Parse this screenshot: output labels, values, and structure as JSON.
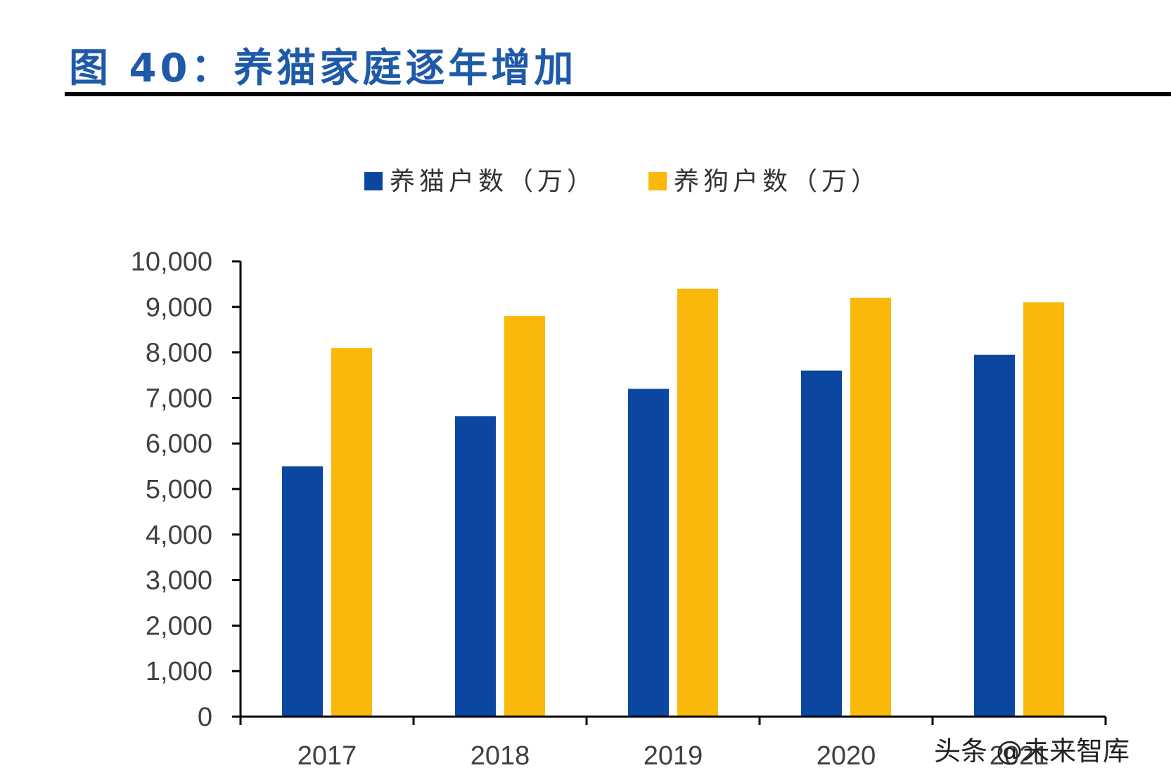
{
  "figure": {
    "title": "图 40：养猫家庭逐年增加"
  },
  "watermark": "头条 @未来智库",
  "chart_data": {
    "type": "bar",
    "categories": [
      "2017",
      "2018",
      "2019",
      "2020",
      "2021"
    ],
    "series": [
      {
        "name": "养猫户数（万）",
        "color": "#0b47a1",
        "values": [
          5500,
          6600,
          7200,
          7600,
          7950
        ]
      },
      {
        "name": "养狗户数（万）",
        "color": "#fab80a",
        "values": [
          8100,
          8800,
          9400,
          9200,
          9100
        ]
      }
    ],
    "ylim": [
      0,
      10000
    ],
    "yticks": [
      "0",
      "1,000",
      "2,000",
      "3,000",
      "4,000",
      "5,000",
      "6,000",
      "7,000",
      "8,000",
      "9,000",
      "10,000"
    ],
    "ytick_values": [
      0,
      1000,
      2000,
      3000,
      4000,
      5000,
      6000,
      7000,
      8000,
      9000,
      10000
    ],
    "xlabel": "",
    "ylabel": "",
    "grid": false,
    "legend_position": "top-center"
  }
}
